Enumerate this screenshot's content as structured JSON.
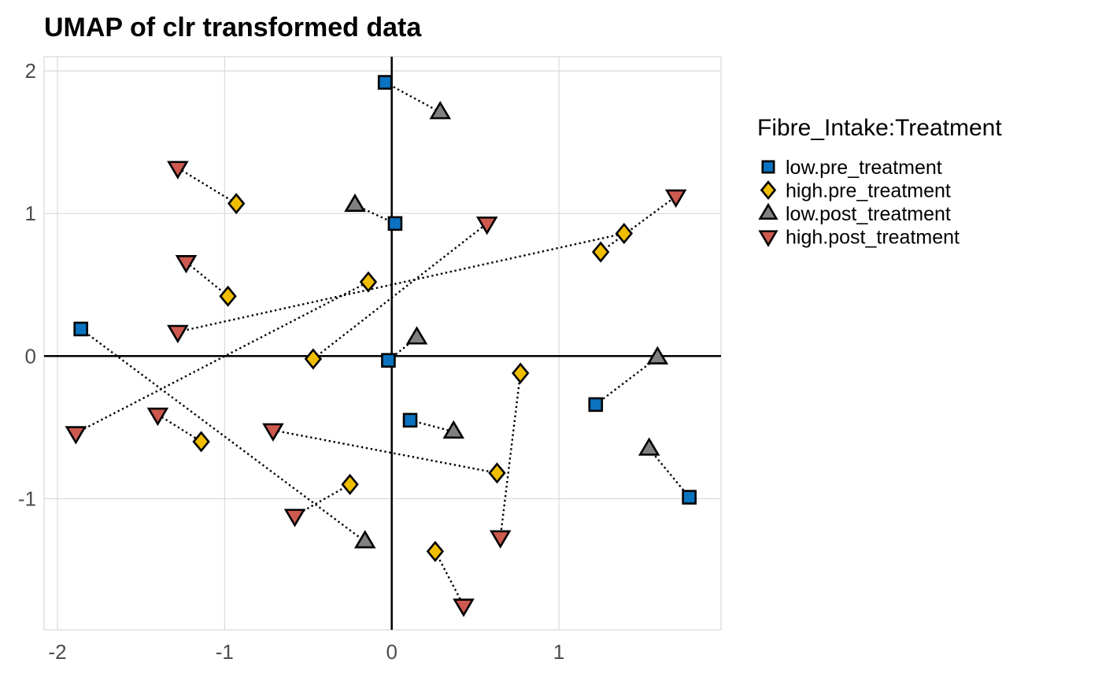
{
  "chart_data": {
    "type": "scatter",
    "title": "UMAP of clr transformed data",
    "xlabel": "",
    "ylabel": "",
    "xlim": [
      -2.08,
      1.97
    ],
    "ylim": [
      -1.92,
      2.1
    ],
    "x_ticks": [
      -2,
      -1,
      0,
      1
    ],
    "y_ticks": [
      2,
      1,
      0,
      -1
    ],
    "x_tick_labels": [
      "-2",
      "-1",
      "0",
      "1"
    ],
    "y_tick_labels": [
      "2",
      "1",
      "0",
      "-1"
    ],
    "grid": true,
    "legend": {
      "title": "Fibre_Intake:Treatment",
      "placement": "right",
      "entries": [
        {
          "key": "low.pre_treatment",
          "label": "low.pre_treatment",
          "shape": "square",
          "color": "#0A72BF"
        },
        {
          "key": "high.pre_treatment",
          "label": "high.pre_treatment",
          "shape": "diamond",
          "color": "#EFBE00"
        },
        {
          "key": "low.post_treatment",
          "label": "low.post_treatment",
          "shape": "triangle-up",
          "color": "#808080"
        },
        {
          "key": "high.post_treatment",
          "label": "high.post_treatment",
          "shape": "triangle-down",
          "color": "#CD5A4F"
        }
      ]
    },
    "points": [
      {
        "x": -0.04,
        "y": 1.92,
        "group": "low.pre_treatment",
        "pair": 1
      },
      {
        "x": 0.29,
        "y": 1.71,
        "group": "low.post_treatment",
        "pair": 1
      },
      {
        "x": -1.28,
        "y": 1.32,
        "group": "high.post_treatment",
        "pair": 2
      },
      {
        "x": -0.93,
        "y": 1.07,
        "group": "high.pre_treatment",
        "pair": 2
      },
      {
        "x": -0.22,
        "y": 1.06,
        "group": "low.post_treatment",
        "pair": 3
      },
      {
        "x": 0.02,
        "y": 0.93,
        "group": "low.pre_treatment",
        "pair": 3
      },
      {
        "x": -1.23,
        "y": 0.66,
        "group": "high.post_treatment",
        "pair": 4
      },
      {
        "x": -0.98,
        "y": 0.42,
        "group": "high.pre_treatment",
        "pair": 4
      },
      {
        "x": -1.28,
        "y": 0.17,
        "group": "high.post_treatment",
        "pair": 5
      },
      {
        "x": 1.39,
        "y": 0.86,
        "group": "high.pre_treatment",
        "pair": 5
      },
      {
        "x": -1.89,
        "y": -0.54,
        "group": "high.post_treatment",
        "pair": 6
      },
      {
        "x": -0.14,
        "y": 0.52,
        "group": "high.pre_treatment",
        "pair": 6
      },
      {
        "x": -0.47,
        "y": -0.02,
        "group": "high.pre_treatment",
        "pair": 7
      },
      {
        "x": 0.57,
        "y": 0.93,
        "group": "high.post_treatment",
        "pair": 7
      },
      {
        "x": 1.25,
        "y": 0.73,
        "group": "high.pre_treatment",
        "pair": 8
      },
      {
        "x": 1.7,
        "y": 1.12,
        "group": "high.post_treatment",
        "pair": 8
      },
      {
        "x": -1.86,
        "y": 0.19,
        "group": "low.pre_treatment",
        "pair": 9
      },
      {
        "x": -0.16,
        "y": -1.3,
        "group": "low.post_treatment",
        "pair": 9
      },
      {
        "x": -0.02,
        "y": -0.03,
        "group": "low.pre_treatment",
        "pair": 10
      },
      {
        "x": 0.15,
        "y": 0.13,
        "group": "low.post_treatment",
        "pair": 10
      },
      {
        "x": 0.77,
        "y": -0.12,
        "group": "high.pre_treatment",
        "pair": 11
      },
      {
        "x": 0.65,
        "y": -1.27,
        "group": "high.post_treatment",
        "pair": 11
      },
      {
        "x": 1.22,
        "y": -0.34,
        "group": "low.pre_treatment",
        "pair": 12
      },
      {
        "x": 1.59,
        "y": -0.01,
        "group": "low.post_treatment",
        "pair": 12
      },
      {
        "x": 0.11,
        "y": -0.45,
        "group": "low.pre_treatment",
        "pair": 13
      },
      {
        "x": 0.37,
        "y": -0.53,
        "group": "low.post_treatment",
        "pair": 13
      },
      {
        "x": -1.4,
        "y": -0.41,
        "group": "high.post_treatment",
        "pair": 14
      },
      {
        "x": -1.14,
        "y": -0.6,
        "group": "high.pre_treatment",
        "pair": 14
      },
      {
        "x": -0.71,
        "y": -0.52,
        "group": "high.post_treatment",
        "pair": 15
      },
      {
        "x": 0.63,
        "y": -0.82,
        "group": "high.pre_treatment",
        "pair": 15
      },
      {
        "x": 1.54,
        "y": -0.65,
        "group": "low.post_treatment",
        "pair": 16
      },
      {
        "x": 1.78,
        "y": -0.99,
        "group": "low.pre_treatment",
        "pair": 16
      },
      {
        "x": -0.25,
        "y": -0.9,
        "group": "high.pre_treatment",
        "pair": 17
      },
      {
        "x": -0.58,
        "y": -1.12,
        "group": "high.post_treatment",
        "pair": 17
      },
      {
        "x": 0.26,
        "y": -1.37,
        "group": "high.pre_treatment",
        "pair": 18
      },
      {
        "x": 0.43,
        "y": -1.75,
        "group": "high.post_treatment",
        "pair": 18
      }
    ]
  }
}
